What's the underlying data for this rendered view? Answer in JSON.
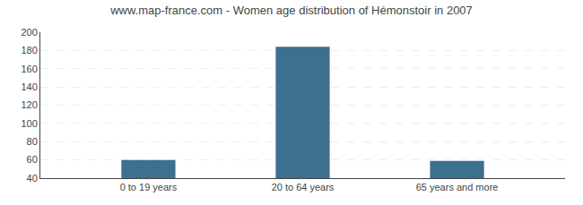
{
  "chart_data": {
    "type": "bar",
    "title": "www.map-france.com - Women age distribution of Hémonstoir in 2007",
    "categories": [
      "0 to 19 years",
      "20 to 64 years",
      "65 years and more"
    ],
    "values": [
      60,
      184,
      59
    ],
    "color": "#3d6f8e",
    "ylim": [
      40,
      200
    ],
    "yticks": [
      40,
      60,
      80,
      100,
      120,
      140,
      160,
      180,
      200
    ],
    "grid": true
  }
}
